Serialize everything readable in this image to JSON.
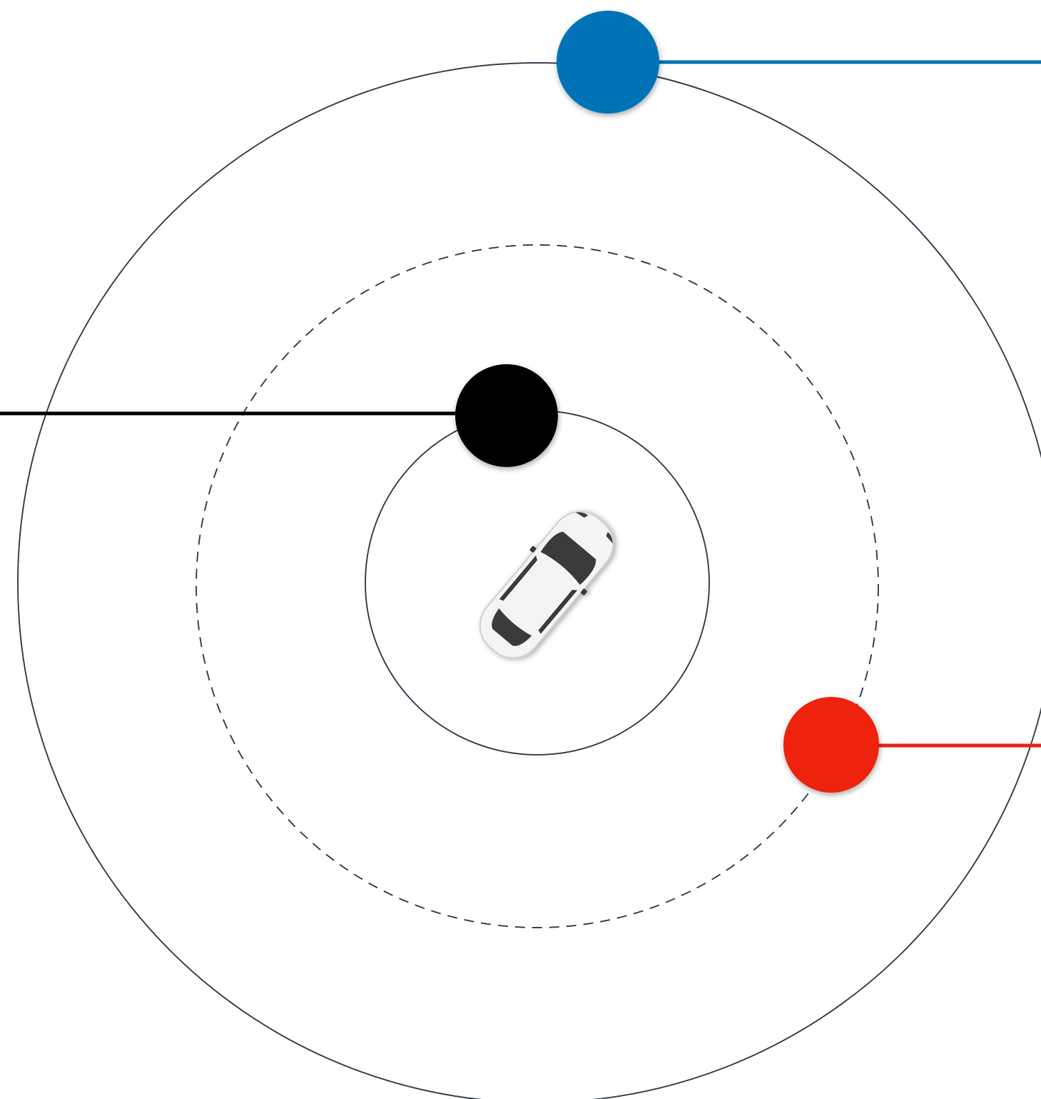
{
  "colors": {
    "background": "#ffffff",
    "ring_stroke": "#3c4856",
    "marker_blue": "#0073b7",
    "marker_black": "#000000",
    "marker_red": "#ee2211",
    "car_body": "#f4f4f4",
    "car_glass": "#3a3a3a"
  },
  "rings": [
    {
      "name": "inner-ring",
      "style": "solid"
    },
    {
      "name": "middle-ring",
      "style": "dashed"
    },
    {
      "name": "outer-ring",
      "style": "solid"
    }
  ],
  "markers": [
    {
      "name": "blue-marker",
      "color": "marker_blue",
      "leader_direction": "right"
    },
    {
      "name": "black-marker",
      "color": "marker_black",
      "leader_direction": "left"
    },
    {
      "name": "red-marker",
      "color": "marker_red",
      "leader_direction": "right"
    }
  ],
  "center_icon": "car-icon"
}
